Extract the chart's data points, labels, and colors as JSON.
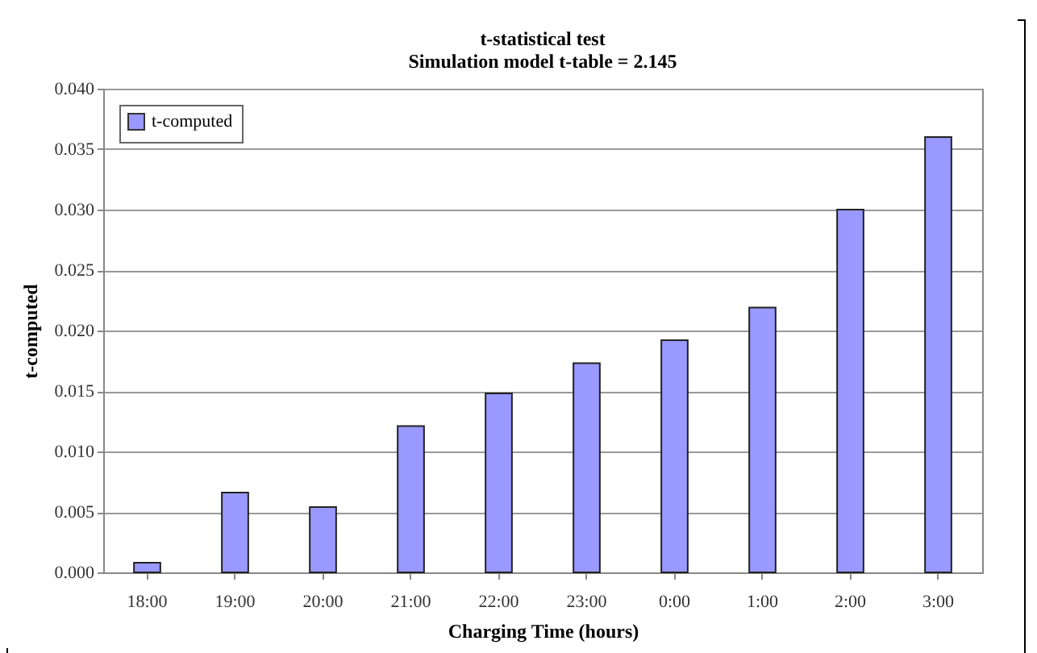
{
  "chart_data": {
    "type": "bar",
    "title": "t-statistical test",
    "subtitle": "Simulation model t-table = 2.145",
    "xlabel": "Charging Time (hours)",
    "ylabel": "t-computed",
    "categories": [
      "18:00",
      "19:00",
      "20:00",
      "21:00",
      "22:00",
      "23:00",
      "0:00",
      "1:00",
      "2:00",
      "3:00"
    ],
    "series": [
      {
        "name": "t-computed",
        "color": "#9999ff",
        "values": [
          0.0008,
          0.0066,
          0.0054,
          0.0121,
          0.0148,
          0.0173,
          0.0192,
          0.0219,
          0.03,
          0.036
        ]
      }
    ],
    "ylim": [
      0,
      0.04
    ],
    "yticks": [
      {
        "value": 0,
        "label": "0.000"
      },
      {
        "value": 0.005,
        "label": "0.005"
      },
      {
        "value": 0.01,
        "label": "0.010"
      },
      {
        "value": 0.015,
        "label": "0.015"
      },
      {
        "value": 0.02,
        "label": "0.020"
      },
      {
        "value": 0.025,
        "label": "0.025"
      },
      {
        "value": 0.03,
        "label": "0.030"
      },
      {
        "value": 0.035,
        "label": "0.035"
      },
      {
        "value": 0.04,
        "label": "0.040"
      }
    ],
    "grid": "y",
    "legend": "top left"
  }
}
